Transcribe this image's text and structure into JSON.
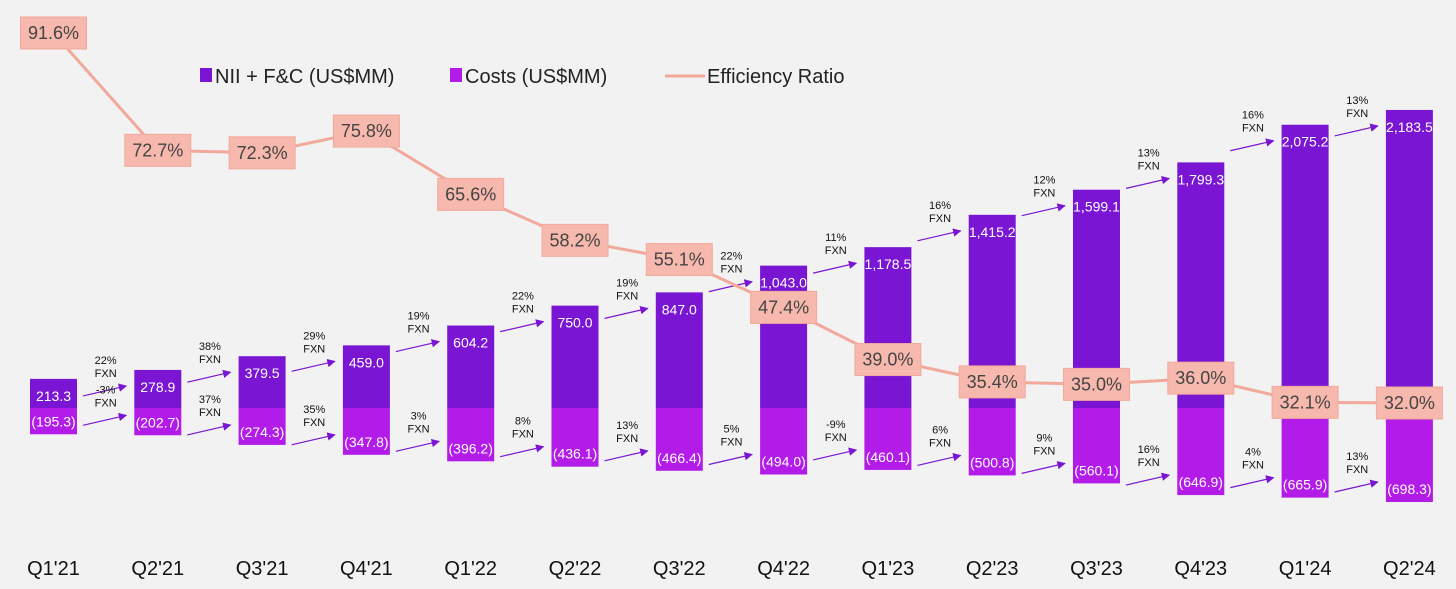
{
  "chart_data": {
    "type": "bar",
    "categories": [
      "Q1'21",
      "Q2'21",
      "Q3'21",
      "Q4'21",
      "Q1'22",
      "Q2'22",
      "Q3'22",
      "Q4'22",
      "Q1'23",
      "Q2'23",
      "Q3'23",
      "Q4'23",
      "Q1'24",
      "Q2'24"
    ],
    "series": [
      {
        "name": "NII + F&C (US$MM)",
        "type": "bar",
        "color": "#7a16d3",
        "values": [
          213.3,
          278.9,
          379.5,
          459.0,
          604.2,
          750.0,
          847.0,
          1043.0,
          1178.5,
          1415.2,
          1599.1,
          1799.3,
          2075.2,
          2183.5
        ],
        "labels": [
          "213.3",
          "278.9",
          "379.5",
          "459.0",
          "604.2",
          "750.0",
          "847.0",
          "1,043.0",
          "1,178.5",
          "1,415.2",
          "1,599.1",
          "1,799.3",
          "2,075.2",
          "2,183.5"
        ]
      },
      {
        "name": "Costs (US$MM)",
        "type": "bar",
        "color": "#b31ce8",
        "values": [
          195.3,
          202.7,
          274.3,
          347.8,
          396.2,
          436.1,
          466.4,
          494.0,
          460.1,
          500.8,
          560.1,
          646.9,
          665.9,
          698.3
        ],
        "labels": [
          "(195.3)",
          "(202.7)",
          "(274.3)",
          "(347.8)",
          "(396.2)",
          "(436.1)",
          "(466.4)",
          "(494.0)",
          "(460.1)",
          "(500.8)",
          "(560.1)",
          "(646.9)",
          "(665.9)",
          "(698.3)"
        ]
      },
      {
        "name": "Efficiency Ratio",
        "type": "line",
        "color": "#f2a99c",
        "values": [
          91.6,
          72.7,
          72.3,
          75.8,
          65.6,
          58.2,
          55.1,
          47.4,
          39.0,
          35.4,
          35.0,
          36.0,
          32.1,
          32.0
        ],
        "labels": [
          "91.6%",
          "72.7%",
          "72.3%",
          "75.8%",
          "65.6%",
          "58.2%",
          "55.1%",
          "47.4%",
          "39.0%",
          "35.4%",
          "35.0%",
          "36.0%",
          "32.1%",
          "32.0%"
        ]
      }
    ],
    "growth_nii": [
      "22%",
      "38%",
      "29%",
      "19%",
      "22%",
      "19%",
      "22%",
      "11%",
      "16%",
      "12%",
      "13%",
      "16%",
      "13%"
    ],
    "growth_costs": [
      "-3%",
      "37%",
      "35%",
      "3%",
      "8%",
      "13%",
      "5%",
      "-9%",
      "6%",
      "9%",
      "16%",
      "4%",
      "13%"
    ],
    "growth_suffix": "FXN",
    "legend_position": "top",
    "grid": false,
    "title": "",
    "xlabel": "",
    "ylabel": ""
  },
  "colors": {
    "background": "#f2f2f2",
    "arrow": "#7a16d3",
    "ratio_box": "#f7b8ad",
    "ratio_box_border": "#f2a99c"
  }
}
